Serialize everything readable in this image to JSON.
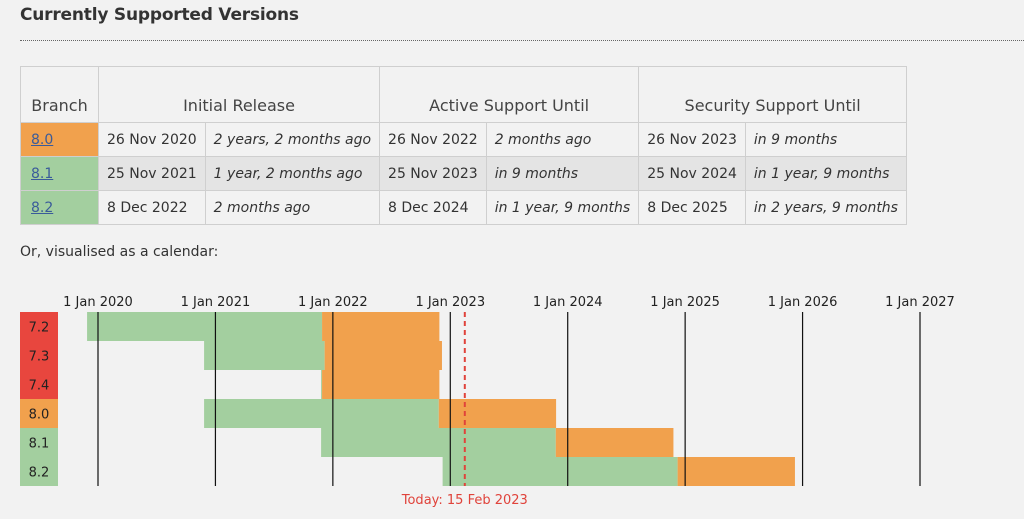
{
  "title": "Currently Supported Versions",
  "table": {
    "headers": [
      "Branch",
      "Initial Release",
      "Active Support Until",
      "Security Support Until"
    ],
    "rows": [
      {
        "branch": "8.0",
        "status": "security",
        "initial_date": "26 Nov 2020",
        "initial_rel": "2 years, 2 months ago",
        "active_date": "26 Nov 2022",
        "active_rel": "2 months ago",
        "security_date": "26 Nov 2023",
        "security_rel": "in 9 months"
      },
      {
        "branch": "8.1",
        "status": "active",
        "initial_date": "25 Nov 2021",
        "initial_rel": "1 year, 2 months ago",
        "active_date": "25 Nov 2023",
        "active_rel": "in 9 months",
        "security_date": "25 Nov 2024",
        "security_rel": "in 1 year, 9 months"
      },
      {
        "branch": "8.2",
        "status": "active",
        "initial_date": "8 Dec 2022",
        "initial_rel": "2 months ago",
        "active_date": "8 Dec 2024",
        "active_rel": "in 1 year, 9 months",
        "security_date": "8 Dec 2025",
        "security_rel": "in 2 years, 9 months"
      }
    ]
  },
  "calendar_caption": "Or, visualised as a calendar:",
  "colors": {
    "active": "#a3cf9f",
    "security": "#f1a14d",
    "eol": "#e8463e",
    "today": "#e0433b"
  },
  "chart_data": {
    "type": "gantt",
    "x_ticks": [
      "1 Jan 2020",
      "1 Jan 2021",
      "1 Jan 2022",
      "1 Jan 2023",
      "1 Jan 2024",
      "1 Jan 2025",
      "1 Jan 2026",
      "1 Jan 2027"
    ],
    "x_range": [
      "2020-01-01",
      "2027-01-01"
    ],
    "today": {
      "date": "2023-02-15",
      "label": "Today: 15 Feb 2023"
    },
    "branches": [
      {
        "name": "7.2",
        "status": "eol",
        "release": "2019-11-28",
        "active_end": "2021-11-28",
        "security_end": "2022-11-28"
      },
      {
        "name": "7.3",
        "status": "eol",
        "release": "2020-11-26",
        "active_end": "2021-12-06",
        "security_end": "2022-12-06"
      },
      {
        "name": "7.4",
        "status": "eol",
        "release": "2021-11-25",
        "active_end": "2021-11-28",
        "security_end": "2022-11-28"
      },
      {
        "name": "8.0",
        "status": "security",
        "release": "2020-11-26",
        "active_end": "2022-11-26",
        "security_end": "2023-11-26"
      },
      {
        "name": "8.1",
        "status": "active",
        "release": "2021-11-25",
        "active_end": "2023-11-25",
        "security_end": "2024-11-25"
      },
      {
        "name": "8.2",
        "status": "active",
        "release": "2022-12-08",
        "active_end": "2024-12-08",
        "security_end": "2025-12-08"
      }
    ]
  }
}
